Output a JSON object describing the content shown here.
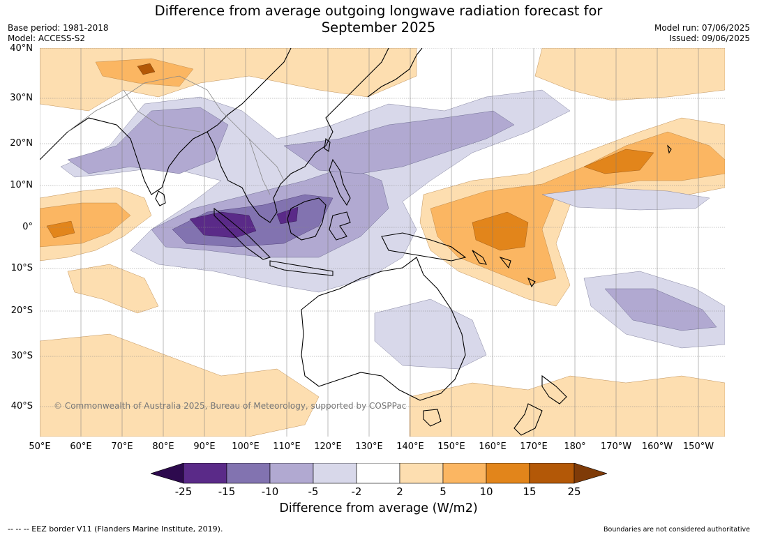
{
  "header": {
    "title_line1": "Difference from average outgoing longwave radiation forecast for",
    "title_line2": "September 2025",
    "base_period": "Base period: 1981-2018",
    "model": "Model: ACCESS-S2",
    "model_run": "Model run: 07/06/2025",
    "issued": "Issued: 09/06/2025"
  },
  "map": {
    "lat_labels": [
      "40°N",
      "30°N",
      "20°N",
      "10°N",
      "0°",
      "10°S",
      "20°S",
      "30°S",
      "40°S"
    ],
    "lon_labels": [
      "50°E",
      "60°E",
      "70°E",
      "80°E",
      "90°E",
      "100°E",
      "110°E",
      "120°E",
      "130°E",
      "140°E",
      "150°E",
      "160°E",
      "170°E",
      "180°",
      "170°W",
      "160°W",
      "150°W"
    ],
    "copyright": "© Commonwealth of Australia 2025, Bureau of Meteorology, supported by COSPPac",
    "colors": {
      "n25": "#2d0a4e",
      "n15": "#5a2a88",
      "n10": "#8273b0",
      "n5": "#b1a9d1",
      "n2": "#d8d8ea",
      "zero": "#ffffff",
      "p2": "#fddeb0",
      "p5": "#fbb662",
      "p10": "#e2851b",
      "p15": "#b35807",
      "p25": "#7f3b08"
    }
  },
  "colorbar": {
    "ticks": [
      "-25",
      "-15",
      "-10",
      "-5",
      "-2",
      "2",
      "5",
      "10",
      "15",
      "25"
    ],
    "label": "Difference from average (W/m2)"
  },
  "footer": {
    "eez": "--  --  -- EEZ border V11 (Flanders Marine Institute, 2019).",
    "boundaries": "Boundaries are not considered authoritative"
  }
}
